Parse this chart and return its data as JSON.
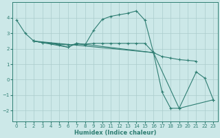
{
  "xlabel": "Humidex (Indice chaleur)",
  "bg_color": "#cce8e8",
  "line_color": "#2e7d72",
  "grid_color": "#aacccc",
  "xlim": [
    -0.5,
    23.5
  ],
  "ylim": [
    -2.7,
    5.0
  ],
  "xticks": [
    0,
    1,
    2,
    3,
    4,
    5,
    6,
    7,
    8,
    9,
    10,
    11,
    12,
    13,
    14,
    15,
    16,
    17,
    18,
    19,
    20,
    21,
    22,
    23
  ],
  "yticks": [
    -2,
    -1,
    0,
    1,
    2,
    3,
    4
  ],
  "line1_x": [
    0,
    1,
    2,
    3,
    4,
    5,
    6,
    7,
    8,
    9,
    10,
    11,
    12,
    13,
    14,
    15,
    16
  ],
  "line1_y": [
    3.85,
    3.0,
    2.5,
    2.4,
    2.35,
    2.25,
    2.1,
    2.35,
    2.25,
    3.2,
    3.9,
    4.1,
    4.2,
    4.3,
    4.45,
    3.85,
    1.75
  ],
  "line2_x": [
    2,
    3,
    4,
    5,
    6,
    7,
    8,
    9,
    10,
    11,
    12,
    13,
    14,
    15,
    16,
    17,
    18,
    19,
    20,
    21
  ],
  "line2_y": [
    2.5,
    2.4,
    2.35,
    2.3,
    2.25,
    2.3,
    2.3,
    2.35,
    2.35,
    2.35,
    2.35,
    2.35,
    2.35,
    2.35,
    1.75,
    1.5,
    1.4,
    1.3,
    1.25,
    1.2
  ],
  "line3_x": [
    2,
    6,
    7,
    16,
    17,
    18,
    19,
    21,
    22,
    23
  ],
  "line3_y": [
    2.5,
    2.1,
    2.35,
    1.75,
    -0.8,
    -1.85,
    -1.85,
    0.5,
    0.1,
    -1.3
  ],
  "line4_x": [
    2,
    16,
    19,
    23
  ],
  "line4_y": [
    2.5,
    1.75,
    -1.85,
    -1.3
  ]
}
